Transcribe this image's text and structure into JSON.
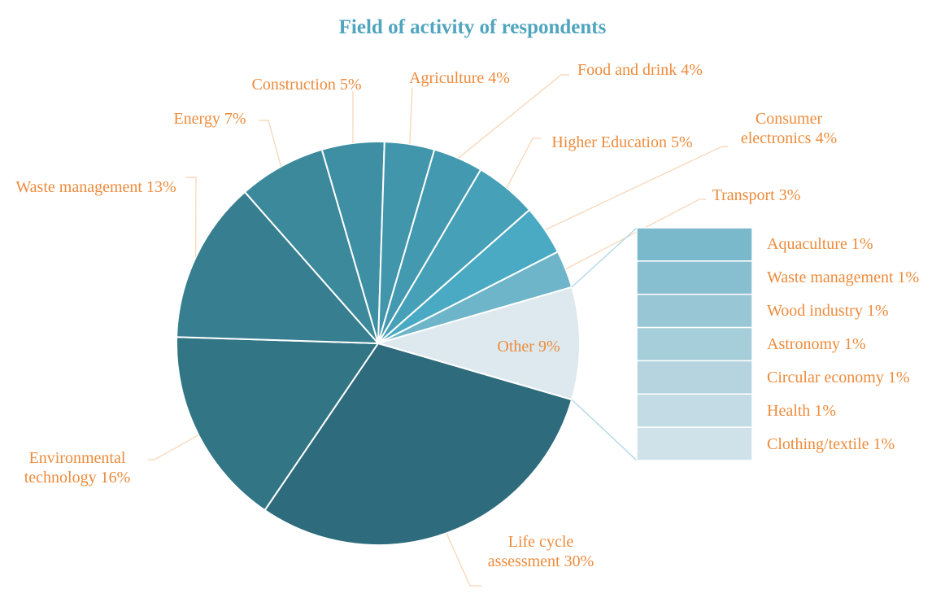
{
  "chart_data": {
    "type": "pie-of-bar",
    "title": "Field of activity of respondents",
    "categories": [
      "Life cycle assessment",
      "Environmental technology",
      "Waste management",
      "Energy",
      "Construction",
      "Agriculture",
      "Food and drink",
      "Higher Education",
      "Consumer electronics",
      "Transport",
      "Other"
    ],
    "values": [
      30,
      16,
      13,
      7,
      5,
      4,
      4,
      5,
      4,
      3,
      9
    ],
    "value_labels": [
      "30%",
      "16%",
      "13%",
      "7%",
      "5%",
      "4%",
      "4%",
      "5%",
      "4%",
      "3%",
      "9%"
    ],
    "colors": [
      "#2e6b7c",
      "#327585",
      "#377f90",
      "#3b899b",
      "#3e8fa3",
      "#4296ab",
      "#4399b0",
      "#45a0b8",
      "#4aaac3",
      "#6fb5c9",
      "#dde9ee"
    ],
    "bar": {
      "categories": [
        "Aquaculture",
        "Waste management",
        "Wood industry",
        "Astronomy",
        "Circular economy",
        "Health",
        "Clothing/textile"
      ],
      "values": [
        1,
        1,
        1,
        1,
        1,
        1,
        1
      ],
      "value_labels": [
        "1%",
        "1%",
        "1%",
        "1%",
        "1%",
        "1%",
        "1%"
      ],
      "colors": [
        "#7ab8cc",
        "#88bfd0",
        "#98c6d5",
        "#a6cdda",
        "#b5d4df",
        "#c3dbe4",
        "#d0e2e9"
      ]
    }
  }
}
